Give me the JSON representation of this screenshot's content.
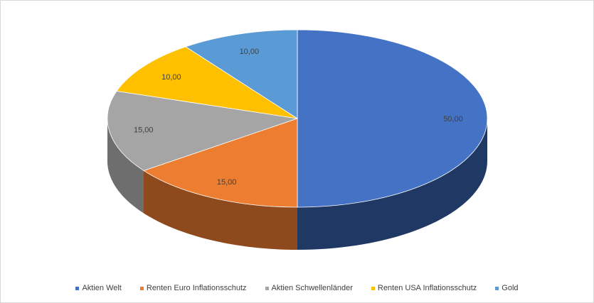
{
  "chart_data": {
    "type": "pie",
    "style": "3d-pie",
    "categories": [
      "Aktien Welt",
      "Renten Euro Inflationsschutz",
      "Aktien Schwellenländer",
      "Renten USA Inflationsschutz",
      "Gold"
    ],
    "values": [
      50,
      15,
      15,
      10,
      10
    ],
    "data_labels": [
      "50,00",
      "15,00",
      "15,00",
      "10,00",
      "10,00"
    ],
    "colors": [
      "#4472C4",
      "#ED7D31",
      "#A5A5A5",
      "#FFC000",
      "#5B9BD5"
    ],
    "side_colors": [
      "#1F3864",
      "#8E4A1C",
      "#6E6E6E",
      "#997300",
      "#2E5F8A"
    ],
    "title": "",
    "legend": {
      "position": "bottom",
      "entries": [
        "Aktien Welt",
        "Renten Euro Inflationsschutz",
        "Aktien Schwellenländer",
        "Renten USA Inflationsschutz",
        "Gold"
      ]
    }
  }
}
